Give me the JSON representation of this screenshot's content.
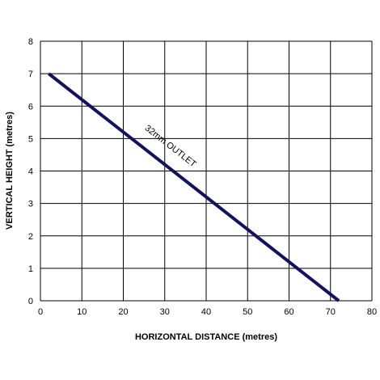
{
  "chart_data": {
    "type": "line",
    "xlabel": "HORIZONTAL DISTANCE (metres)",
    "ylabel": "VERTICAL HEIGHT (metres)",
    "xlim": [
      0,
      80
    ],
    "ylim": [
      0,
      8
    ],
    "x_ticks": [
      0,
      10,
      20,
      30,
      40,
      50,
      60,
      70,
      80
    ],
    "y_ticks": [
      0,
      1,
      2,
      3,
      4,
      5,
      6,
      7,
      8
    ],
    "grid": true,
    "series": [
      {
        "name": "32mm OUTLET",
        "color": "#12125e",
        "x": [
          2,
          72
        ],
        "y": [
          7,
          0
        ]
      }
    ],
    "annotations": [
      {
        "text": "32mm OUTLET",
        "x": 31,
        "y": 4.7
      }
    ]
  }
}
